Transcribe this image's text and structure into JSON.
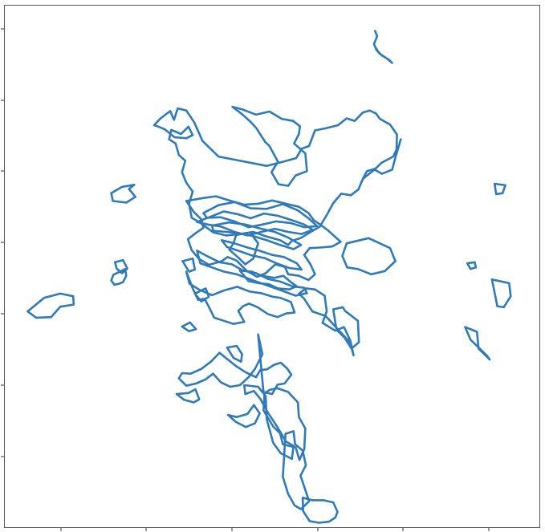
{
  "chart_data": {
    "type": "line",
    "title": "",
    "xlabel": "",
    "ylabel": "",
    "grid": false,
    "legend": "none",
    "color": "#2f7ab8",
    "x_ticks": [
      "",
      "",
      "",
      "",
      "",
      ""
    ],
    "y_ticks": [
      "",
      "",
      "",
      "",
      "",
      "",
      ""
    ],
    "xlim": [
      0,
      100
    ],
    "ylim": [
      0,
      100
    ],
    "series": [
      {
        "x": [
          69.2,
          69.6,
          69.0,
          69.5,
          70.5,
          71.8,
          72.4,
          71.2,
          70.0,
          69.2
        ],
        "y": [
          95.0,
          94.0,
          92.5,
          91.3,
          90.3,
          89.5,
          88.9,
          89.9,
          90.7,
          92.0
        ]
      },
      {
        "x": [
          42.6,
          44.5,
          47.0,
          49.5,
          51.8,
          53.9,
          55.2,
          55.0,
          54.1,
          56.2,
          56.5,
          54.4,
          53.0,
          51.2,
          49.9,
          51.1,
          49.5,
          48.7,
          47.0,
          46.0,
          44.5,
          42.6
        ],
        "y": [
          80.5,
          80.0,
          79.0,
          79.6,
          78.2,
          77.8,
          76.8,
          75.3,
          73.5,
          71.6,
          68.2,
          67.4,
          65.4,
          65.7,
          68.0,
          70.0,
          73.0,
          73.8,
          76.5,
          77.6,
          79.0,
          80.5
        ]
      },
      {
        "x": [
          20.0,
          22.0,
          24.3,
          23.3,
          24.5,
          22.8,
          20.3,
          20.0
        ],
        "y": [
          64.0,
          65.2,
          65.6,
          64.8,
          63.3,
          62.2,
          62.5,
          64.0
        ]
      },
      {
        "x": [
          74.0,
          73.0,
          72.4,
          70.5,
          69.1,
          67.0,
          66.6
        ],
        "y": [
          74.3,
          70.8,
          68.5,
          67.7,
          68.5,
          66.8,
          66.0
        ]
      },
      {
        "x": [
          91.5,
          93.5,
          93.0,
          91.8,
          91.5
        ],
        "y": [
          65.8,
          65.5,
          64.0,
          63.8,
          65.8
        ]
      },
      {
        "x": [
          4.4,
          7.5,
          10.5,
          12.9,
          13.0,
          10.5,
          8.8,
          6.0,
          4.4
        ],
        "y": [
          41.4,
          44.0,
          44.8,
          44.3,
          42.7,
          42.3,
          40.3,
          40.2,
          41.4
        ]
      },
      {
        "x": [
          20.4,
          22.6,
          22.8,
          22.2,
          21.5,
          20.6,
          20.0,
          20.4
        ],
        "y": [
          48.4,
          49.5,
          48.2,
          47.0,
          46.7,
          46.5,
          47.3,
          48.4
        ]
      },
      {
        "x": [
          63.9,
          68.0,
          72.0,
          73.0,
          71.0,
          68.5,
          66.0,
          64.0,
          63.1,
          63.9
        ],
        "y": [
          54.4,
          55.4,
          53.5,
          51.0,
          49.1,
          48.5,
          49.5,
          49.8,
          52.0,
          54.4
        ]
      },
      {
        "x": [
          86.4,
          87.8,
          88.0,
          87.0,
          86.4
        ],
        "y": [
          50.6,
          50.8,
          49.8,
          49.5,
          50.6
        ]
      },
      {
        "x": [
          91.0,
          94.2,
          94.5,
          93.2,
          92.0,
          91.5,
          91.0
        ],
        "y": [
          47.5,
          46.8,
          44.3,
          42.2,
          42.4,
          45.0,
          47.5
        ]
      },
      {
        "x": [
          86.0,
          88.2,
          88.5,
          90.6,
          90.0,
          88.5,
          87.0,
          86.0
        ],
        "y": [
          38.4,
          37.5,
          34.3,
          32.2,
          33.0,
          34.5,
          36.0,
          38.4
        ]
      },
      {
        "x": [
          20.7,
          22.2,
          23.0,
          22.0,
          21.0,
          20.7
        ],
        "y": [
          50.8,
          51.2,
          49.6,
          48.7,
          49.6,
          50.8
        ]
      },
      {
        "x": [
          33.3,
          35.2,
          35.6,
          34.5,
          33.3
        ],
        "y": [
          51.0,
          51.5,
          49.4,
          49.0,
          51.0
        ]
      },
      {
        "x": [
          33.2,
          34.7,
          35.8,
          34.5,
          33.2
        ],
        "y": [
          38.5,
          39.3,
          38.0,
          37.6,
          38.5
        ]
      },
      {
        "x": [
          32.2,
          34.4,
          35.7,
          36.4,
          35.4,
          33.6,
          32.2
        ],
        "y": [
          25.6,
          25.8,
          26.5,
          24.6,
          24.0,
          24.5,
          25.6
        ]
      },
      {
        "x": [
          59.8,
          60.2,
          59.4,
          61.8,
          63.4,
          64.6,
          65.2,
          64.5,
          61.8,
          60.0,
          57.5,
          56.0,
          55.0,
          56.3,
          58.0,
          59.8
        ],
        "y": [
          44.4,
          41.4,
          39.2,
          37.7,
          38.4,
          35.8,
          33.0,
          35.5,
          38.5,
          40.5,
          41.4,
          43.8,
          44.8,
          45.8,
          45.6,
          44.4
        ]
      },
      {
        "x": [
          28.0,
          29.2,
          31.0,
          31.7,
          32.4,
          34.0,
          35.5,
          37.0,
          40.0,
          43.0,
          46.0,
          49.0,
          52.0,
          54.5,
          55.5,
          56.9,
          58.0,
          60.0,
          62.3,
          63.9,
          65.4,
          66.9,
          68.2,
          69.4,
          70.1,
          72.0,
          73.3,
          73.2,
          72.6,
          70.4,
          69.3,
          67.7,
          67.0,
          66.1,
          64.7,
          62.9,
          61.4,
          60.4,
          58.9,
          57.2,
          55.3,
          53.7,
          53.0,
          51.5,
          49.0,
          46.5,
          44.0,
          41.5,
          39.0,
          36.5,
          35.0,
          34.5,
          35.2,
          34.0,
          33.2,
          33.8,
          32.6,
          32.0,
          30.8,
          31.2,
          33.0,
          34.4,
          35.2,
          34.0,
          31.8,
          30.0,
          28.6,
          28.0
        ],
        "y": [
          77.0,
          78.3,
          79.7,
          78.0,
          80.2,
          79.8,
          77.5,
          74.0,
          71.0,
          70.4,
          69.8,
          69.2,
          70.0,
          70.7,
          72.5,
          73.0,
          76.0,
          76.4,
          77.0,
          78.3,
          77.8,
          79.4,
          79.8,
          79.2,
          78.2,
          77.1,
          75.2,
          72.3,
          71.0,
          69.8,
          68.7,
          68.2,
          66.9,
          64.7,
          63.6,
          63.9,
          62.1,
          60.2,
          57.6,
          56.6,
          55.4,
          54.9,
          54.1,
          55.0,
          55.7,
          56.6,
          56.2,
          55.9,
          56.5,
          58.4,
          59.3,
          62.0,
          64.3,
          66.0,
          68.0,
          70.2,
          71.3,
          73.5,
          74.3,
          76.1,
          75.3,
          76.7,
          75.1,
          74.5,
          74.7,
          76.2,
          76.8,
          77.0
        ]
      },
      {
        "x": [
          34.0,
          36.8,
          39.5,
          42.0,
          44.8,
          47.5,
          50.0,
          52.5,
          55.0,
          56.8,
          57.8,
          59.2,
          60.4,
          62.8,
          61.2,
          59.0,
          57.0,
          56.0,
          57.2,
          58.0,
          56.8,
          55.0,
          53.0,
          52.4,
          50.6,
          48.8,
          47.2,
          45.2,
          43.4,
          41.7,
          40.6,
          38.2,
          36.4,
          35.0,
          34.3,
          35.8,
          37.2,
          36.8,
          35.4,
          34.0
        ],
        "y": [
          62.5,
          63.0,
          63.4,
          62.6,
          61.8,
          62.0,
          62.6,
          62.0,
          61.4,
          60.2,
          58.8,
          57.8,
          56.9,
          54.7,
          53.8,
          53.6,
          53.5,
          52.2,
          50.3,
          48.5,
          47.4,
          48.2,
          48.5,
          49.9,
          50.4,
          48.7,
          48.0,
          49.2,
          51.1,
          51.8,
          51.0,
          50.3,
          51.4,
          53.1,
          55.2,
          56.4,
          57.4,
          59.0,
          60.4,
          62.5
        ]
      },
      {
        "x": [
          36.0,
          38.5,
          41.0,
          43.5,
          46.0,
          48.5,
          51.0,
          53.5,
          56.0,
          57.6,
          55.5,
          53.0,
          50.5,
          48.0,
          45.5,
          43.0,
          40.5,
          38.0,
          36.0
        ],
        "y": [
          58.5,
          59.5,
          60.5,
          60.0,
          59.2,
          60.1,
          59.7,
          58.9,
          58.0,
          57.0,
          56.2,
          56.6,
          57.2,
          56.6,
          55.9,
          56.6,
          57.6,
          58.0,
          58.5
        ]
      },
      {
        "x": [
          37.2,
          40.0,
          43.0,
          46.0,
          49.0,
          52.0,
          54.8,
          56.8,
          58.4,
          56.0,
          53.4,
          50.8,
          48.2,
          45.6,
          43.0,
          40.4,
          37.8,
          37.2
        ],
        "y": [
          60.2,
          61.7,
          62.3,
          61.1,
          61.0,
          61.9,
          60.7,
          59.2,
          57.7,
          57.5,
          58.3,
          58.6,
          58.0,
          57.5,
          58.6,
          59.4,
          59.3,
          60.2
        ]
      },
      {
        "x": [
          38.8,
          42.0,
          45.0,
          48.0,
          50.5,
          53.0,
          55.4,
          54.0,
          51.5,
          49.0,
          46.5,
          44.0,
          41.5,
          39.0,
          38.8
        ],
        "y": [
          57.8,
          58.4,
          58.0,
          57.2,
          56.6,
          55.5,
          54.1,
          53.3,
          54.1,
          55.0,
          55.8,
          56.3,
          56.6,
          56.8,
          57.8
        ]
      },
      {
        "x": [
          40.6,
          43.0,
          45.4,
          47.6,
          50.0,
          52.2,
          54.6,
          55.5,
          53.2,
          50.8,
          48.6,
          46.2,
          44.0,
          41.6,
          40.6
        ],
        "y": [
          55.0,
          54.4,
          53.6,
          53.0,
          52.2,
          51.8,
          50.6,
          49.4,
          49.7,
          50.6,
          51.6,
          52.1,
          52.9,
          53.7,
          55.0
        ]
      },
      {
        "x": [
          34.0,
          34.6,
          36.5,
          38.8,
          41.0,
          43.5,
          45.8,
          47.9,
          50.1,
          51.5,
          53.5,
          54.2,
          52.6,
          51.0,
          49.2,
          47.3,
          45.7,
          44.6,
          43.7,
          44.8,
          42.8,
          41.0,
          39.2,
          38.0,
          37.4,
          36.2,
          35.2,
          34.0
        ],
        "y": [
          49.0,
          46.7,
          45.5,
          44.5,
          45.4,
          46.1,
          45.2,
          44.9,
          44.2,
          44.0,
          43.2,
          41.2,
          41.0,
          40.3,
          40.9,
          42.2,
          42.9,
          42.4,
          41.5,
          39.4,
          39.0,
          39.6,
          40.2,
          42.7,
          43.8,
          43.6,
          45.8,
          49.0
        ]
      },
      {
        "x": [
          36.0,
          38.0,
          40.2,
          42.5,
          44.6,
          47.0,
          49.2,
          51.5,
          53.8,
          56.0,
          56.5,
          54.4,
          52.0,
          49.8,
          47.6,
          45.5,
          43.4,
          41.0,
          38.8,
          36.6,
          36.0
        ],
        "y": [
          53.0,
          51.9,
          50.8,
          50.4,
          49.2,
          48.7,
          47.6,
          47.1,
          46.2,
          45.9,
          44.9,
          44.4,
          45.3,
          46.1,
          46.9,
          47.7,
          48.5,
          49.0,
          49.8,
          50.6,
          53.0
        ]
      },
      {
        "x": [
          47.4,
          48.2,
          46.8,
          45.6,
          44.0,
          42.2,
          40.5,
          39.0,
          37.6,
          35.8,
          34.0,
          32.6,
          33.2,
          34.8,
          36.8,
          38.6,
          40.2,
          41.5,
          43.2,
          45.0,
          47.0,
          47.8,
          49.0,
          50.4,
          51.6,
          52.8,
          53.6,
          52.3,
          51.0,
          50.0,
          48.4,
          47.4
        ],
        "y": [
          37.0,
          33.2,
          30.4,
          28.8,
          27.3,
          27.0,
          27.8,
          29.5,
          28.4,
          27.6,
          27.2,
          28.6,
          29.6,
          29.5,
          30.4,
          31.8,
          33.5,
          32.4,
          31.0,
          29.8,
          28.8,
          30.2,
          30.3,
          31.2,
          31.6,
          30.5,
          29.3,
          27.6,
          27.4,
          25.6,
          26.0,
          37.0
        ]
      },
      {
        "x": [
          41.8,
          43.4,
          45.4,
          46.6,
          47.7,
          46.8,
          45.1,
          43.2,
          41.8
        ],
        "y": [
          21.6,
          21.2,
          21.8,
          23.5,
          21.9,
          20.0,
          19.3,
          20.3,
          21.6
        ]
      },
      {
        "x": [
          44.8,
          47.4,
          48.8,
          49.0,
          50.2,
          51.6,
          53.7,
          54.0,
          52.6,
          50.8,
          49.3,
          47.8,
          46.6,
          45.0,
          44.8
        ],
        "y": [
          27.3,
          27.0,
          25.2,
          20.8,
          16.3,
          14.3,
          13.2,
          15.7,
          16.5,
          19.6,
          21.9,
          24.7,
          26.2,
          25.6,
          27.3
        ]
      },
      {
        "x": [
          48.6,
          48.4,
          50.2,
          51.5,
          52.0,
          54.4,
          55.1,
          56.0,
          56.2,
          55.0,
          54.8,
          53.0,
          51.0,
          49.5,
          48.6
        ],
        "y": [
          25.7,
          22.5,
          19.4,
          18.1,
          16.0,
          15.4,
          13.0,
          15.1,
          19.0,
          21.2,
          24.0,
          26.0,
          26.7,
          26.4,
          25.7
        ]
      },
      {
        "x": [
          52.5,
          54.0,
          54.3,
          55.7,
          56.3,
          55.3,
          56.1,
          56.9,
          55.4,
          54.2,
          53.0,
          52.0,
          52.5
        ],
        "y": [
          18.0,
          18.5,
          16.0,
          14.8,
          12.0,
          10.0,
          7.6,
          5.1,
          3.6,
          4.3,
          6.5,
          9.8,
          18.0
        ]
      },
      {
        "x": [
          55.7,
          57.5,
          59.6,
          61.4,
          62.2,
          61.8,
          60.6,
          58.8,
          57.0,
          55.8,
          55.7
        ],
        "y": [
          5.8,
          5.3,
          5.3,
          4.9,
          3.1,
          2.0,
          1.2,
          1.0,
          1.3,
          3.2,
          5.8
        ]
      },
      {
        "x": [
          61.4,
          63.2,
          63.6,
          66.0,
          66.2,
          64.8,
          63.5,
          62.0,
          61.4
        ],
        "y": [
          41.8,
          42.2,
          41.5,
          39.6,
          35.5,
          34.3,
          36.4,
          37.9,
          41.8
        ]
      },
      {
        "x": [
          43.3,
          45.9,
          47.4,
          46.5,
          45.0,
          43.6,
          42.0,
          42.8,
          43.3
        ],
        "y": [
          56.0,
          56.5,
          54.4,
          51.5,
          50.4,
          51.8,
          53.2,
          54.4,
          56.0
        ]
      },
      {
        "x": [
          44.0,
          46.2,
          48.1,
          50.4,
          52.1,
          53.5,
          54.6,
          53.2,
          51.1,
          49.4,
          47.5,
          45.6,
          44.0
        ],
        "y": [
          49.2,
          49.0,
          48.2,
          47.8,
          48.2,
          47.0,
          46.2,
          45.6,
          45.8,
          46.6,
          46.8,
          47.2,
          49.2
        ]
      },
      {
        "x": [
          35.6,
          37.6,
          38.2,
          36.8,
          35.6
        ],
        "y": [
          44.8,
          45.8,
          44.2,
          43.3,
          44.8
        ]
      },
      {
        "x": [
          41.6,
          43.4,
          44.4,
          44.2,
          42.8,
          41.6
        ],
        "y": [
          34.5,
          34.8,
          33.2,
          31.8,
          32.5,
          34.5
        ]
      }
    ]
  }
}
